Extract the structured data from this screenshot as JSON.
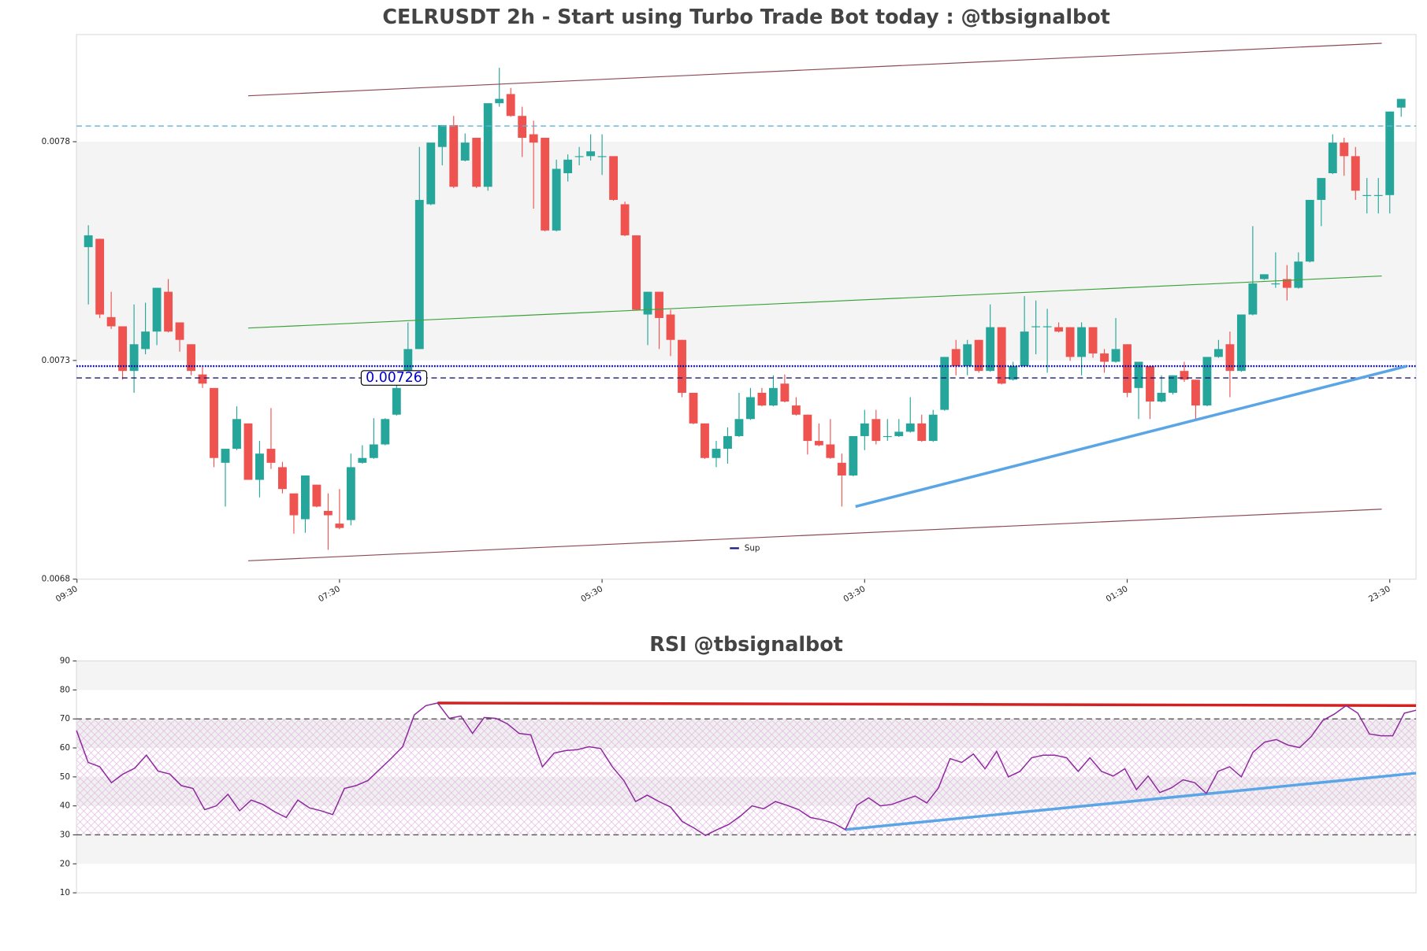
{
  "chart_data": [
    {
      "type": "candlestick",
      "title": "CELRUSDT 2h - Start using Turbo Trade Bot today : @tbsignalbot",
      "up_color": "#26a69a",
      "down_color": "#ef5350",
      "xlim": [
        -1.04,
        116.3
      ],
      "xticks": [
        {
          "value": -1,
          "label": "09:30"
        },
        {
          "value": 22,
          "label": "07:30"
        },
        {
          "value": 45,
          "label": "05:30"
        },
        {
          "value": 68,
          "label": "03:30"
        },
        {
          "value": 91,
          "label": "01:30"
        },
        {
          "value": 114,
          "label": "23:30"
        }
      ],
      "ylim": [
        0.0068,
        0.008045
      ],
      "yticks": [
        0.0068,
        0.0073,
        0.0078
      ],
      "open": [
        0.007559,
        0.007578,
        0.007399,
        0.007378,
        0.007276,
        0.007326,
        0.007366,
        0.007457,
        0.007387,
        0.007337,
        0.007268,
        0.007237,
        0.007066,
        0.007098,
        0.007156,
        0.007027,
        0.007098,
        0.007056,
        0.006996,
        0.006937,
        0.007016,
        0.006956,
        0.006927,
        0.006935,
        0.007066,
        0.007077,
        0.007108,
        0.007176,
        0.007247,
        0.007326,
        0.007657,
        0.007788,
        0.007838,
        0.007757,
        0.007809,
        0.007697,
        0.007888,
        0.007909,
        0.007859,
        0.007817,
        0.007809,
        0.007597,
        0.007728,
        0.007767,
        0.007767,
        0.007767,
        0.007767,
        0.007657,
        0.007586,
        0.007405,
        0.007457,
        0.007405,
        0.007347,
        0.007226,
        0.007156,
        0.007077,
        0.007098,
        0.007127,
        0.007166,
        0.007226,
        0.007197,
        0.007247,
        0.007197,
        0.007176,
        0.007116,
        0.007108,
        0.007066,
        0.007037,
        0.007127,
        0.007166,
        0.007127,
        0.007127,
        0.007137,
        0.007156,
        0.007116,
        0.007187,
        0.007326,
        0.007287,
        0.007347,
        0.007276,
        0.007376,
        0.007256,
        0.007287,
        0.007378,
        0.007378,
        0.007376,
        0.007376,
        0.007308,
        0.007376,
        0.007316,
        0.007297,
        0.007337,
        0.007237,
        0.007287,
        0.007206,
        0.007226,
        0.007276,
        0.007256,
        0.007197,
        0.007308,
        0.007337,
        0.007276,
        0.007405,
        0.007486,
        0.007476,
        0.007486,
        0.007466,
        0.007526,
        0.007667,
        0.007728,
        0.007798,
        0.007767,
        0.007678,
        0.007678,
        0.007678,
        0.007878
      ],
      "high": [
        0.007609,
        0.007578,
        0.007457,
        0.007378,
        0.007428,
        0.007432,
        0.007466,
        0.007486,
        0.007387,
        0.007337,
        0.007285,
        0.007237,
        0.007098,
        0.007195,
        0.007156,
        0.007116,
        0.007191,
        0.007068,
        0.006996,
        0.007037,
        0.007016,
        0.006996,
        0.007006,
        0.007087,
        0.007106,
        0.007168,
        0.007168,
        0.007262,
        0.007387,
        0.007788,
        0.007798,
        0.007838,
        0.007859,
        0.007819,
        0.007809,
        0.007888,
        0.007969,
        0.007923,
        0.00788,
        0.007848,
        0.007809,
        0.007759,
        0.007771,
        0.007788,
        0.007817,
        0.007817,
        0.007767,
        0.007663,
        0.007586,
        0.007457,
        0.007457,
        0.007416,
        0.007347,
        0.007226,
        0.007156,
        0.007116,
        0.007147,
        0.007226,
        0.007237,
        0.007237,
        0.007266,
        0.007268,
        0.007216,
        0.007176,
        0.007156,
        0.007166,
        0.007087,
        0.007127,
        0.007187,
        0.007187,
        0.007166,
        0.007166,
        0.007216,
        0.007176,
        0.007187,
        0.007308,
        0.007347,
        0.007347,
        0.007347,
        0.007428,
        0.007376,
        0.007297,
        0.007447,
        0.007437,
        0.007418,
        0.007387,
        0.007376,
        0.007387,
        0.007376,
        0.007326,
        0.007397,
        0.007337,
        0.007297,
        0.007287,
        0.007266,
        0.007266,
        0.007297,
        0.007256,
        0.007308,
        0.007347,
        0.007366,
        0.007405,
        0.007607,
        0.007497,
        0.007547,
        0.007518,
        0.007547,
        0.007667,
        0.007717,
        0.007817,
        0.007809,
        0.007788,
        0.007717,
        0.007717,
        0.007869,
        0.007898
      ],
      "low": [
        0.007428,
        0.007397,
        0.007372,
        0.007256,
        0.007226,
        0.007314,
        0.007335,
        0.007364,
        0.00732,
        0.007266,
        0.007237,
        0.007056,
        0.006966,
        0.007095,
        0.007027,
        0.006987,
        0.007052,
        0.006996,
        0.006904,
        0.006906,
        0.006964,
        0.006867,
        0.006914,
        0.006923,
        0.007064,
        0.007075,
        0.007106,
        0.007174,
        0.007245,
        0.007326,
        0.007655,
        0.007746,
        0.007694,
        0.007755,
        0.007694,
        0.007688,
        0.00788,
        0.007857,
        0.007765,
        0.007647,
        0.007595,
        0.007595,
        0.007709,
        0.007746,
        0.007757,
        0.007724,
        0.007665,
        0.007584,
        0.007414,
        0.007335,
        0.007326,
        0.00731,
        0.007216,
        0.007154,
        0.007075,
        0.007056,
        0.007064,
        0.007125,
        0.007164,
        0.007195,
        0.007195,
        0.007204,
        0.007174,
        0.007085,
        0.007104,
        0.007075,
        0.006966,
        0.007035,
        0.007095,
        0.007108,
        0.007116,
        0.007125,
        0.007135,
        0.007114,
        0.007114,
        0.007185,
        0.007266,
        0.007266,
        0.007272,
        0.007274,
        0.007245,
        0.007254,
        0.007285,
        0.007314,
        0.007272,
        0.007364,
        0.007299,
        0.007266,
        0.007306,
        0.007272,
        0.007295,
        0.007216,
        0.007166,
        0.007166,
        0.007204,
        0.007222,
        0.007251,
        0.007166,
        0.007195,
        0.007306,
        0.007216,
        0.007274,
        0.007403,
        0.007484,
        0.007466,
        0.007437,
        0.007464,
        0.007524,
        0.007607,
        0.007726,
        0.007722,
        0.007667,
        0.007636,
        0.007636,
        0.007636,
        0.007857
      ],
      "close": [
        0.007586,
        0.007405,
        0.007378,
        0.007276,
        0.007337,
        0.007366,
        0.007466,
        0.007366,
        0.007347,
        0.007276,
        0.007247,
        0.007077,
        0.007098,
        0.007166,
        0.007027,
        0.007087,
        0.007066,
        0.007006,
        0.006946,
        0.007037,
        0.006966,
        0.006946,
        0.006917,
        0.007056,
        0.007077,
        0.007108,
        0.007166,
        0.007237,
        0.007326,
        0.007667,
        0.007798,
        0.007838,
        0.007697,
        0.007798,
        0.007697,
        0.007888,
        0.007898,
        0.007859,
        0.007809,
        0.007798,
        0.007597,
        0.007738,
        0.007759,
        0.007767,
        0.007778,
        0.007767,
        0.007667,
        0.007586,
        0.007416,
        0.007457,
        0.007397,
        0.007347,
        0.007226,
        0.007156,
        0.007077,
        0.007098,
        0.007127,
        0.007166,
        0.007216,
        0.007197,
        0.007237,
        0.007206,
        0.007176,
        0.007116,
        0.007106,
        0.007077,
        0.007037,
        0.007127,
        0.007156,
        0.007116,
        0.007127,
        0.007137,
        0.007156,
        0.007116,
        0.007176,
        0.007308,
        0.007287,
        0.007337,
        0.007276,
        0.007376,
        0.007247,
        0.007287,
        0.007366,
        0.007378,
        0.007378,
        0.007366,
        0.007308,
        0.007376,
        0.007316,
        0.007297,
        0.007326,
        0.007226,
        0.007297,
        0.007206,
        0.007226,
        0.007266,
        0.007256,
        0.007197,
        0.007308,
        0.007326,
        0.007276,
        0.007405,
        0.007476,
        0.007497,
        0.007476,
        0.007466,
        0.007526,
        0.007667,
        0.007717,
        0.007798,
        0.007767,
        0.007688,
        0.007678,
        0.007678,
        0.007869,
        0.007898
      ],
      "zones": [
        {
          "from": 0.0073,
          "to": 0.0078,
          "color": "#f4f4f4"
        }
      ],
      "hlines": [
        {
          "value": 0.007836,
          "color": "#5fb4d8",
          "style": "dashed"
        },
        {
          "value": 0.007287,
          "color": "#0000aa",
          "style": "dotted"
        },
        {
          "name": "Sup",
          "value": 0.00726,
          "label": "0.00726",
          "color": "#1a1a7a",
          "style": "dashed"
        }
      ],
      "lines": [
        {
          "x": [
            14,
            113.3
          ],
          "values": [
            0.007905,
            0.008025
          ],
          "color": "#8b4a55",
          "width": 1
        },
        {
          "x": [
            14,
            113.3
          ],
          "values": [
            0.006842,
            0.00696
          ],
          "color": "#8b4a55",
          "width": 1
        },
        {
          "x": [
            14,
            113.3
          ],
          "values": [
            0.007374,
            0.007493
          ],
          "color": "#3aa33a",
          "width": 1
        },
        {
          "x": [
            67.2,
            115.5
          ],
          "values": [
            0.006966,
            0.007287
          ],
          "color": "#5aa5e6",
          "width": 3
        }
      ],
      "legend": "lower center"
    },
    {
      "type": "line",
      "title": "RSI @tbsignalbot",
      "color": "#8e2a9e",
      "xlim": [
        0,
        115
      ],
      "ylim": [
        10,
        90
      ],
      "yticks": [
        10,
        20,
        30,
        40,
        50,
        60,
        70,
        80,
        90
      ],
      "values": [
        66,
        55,
        53.5,
        48,
        51,
        53,
        57.5,
        52,
        51,
        47,
        46,
        38.7,
        40,
        44,
        38.3,
        42,
        40.5,
        38,
        36,
        42,
        39.3,
        38.3,
        37,
        46,
        47,
        48.7,
        52.5,
        56.3,
        60.4,
        71.4,
        74.6,
        75.5,
        70.2,
        71,
        65,
        70.5,
        70.2,
        68.3,
        65,
        64.5,
        53.5,
        58.2,
        59.1,
        59.4,
        60.4,
        59.8,
        53.5,
        48.7,
        41.5,
        43.7,
        41.5,
        39.6,
        34.6,
        32.4,
        29.8,
        31.8,
        33.6,
        36.5,
        40,
        39,
        41.5,
        40.2,
        38.7,
        36,
        35.2,
        34,
        31.8,
        40.2,
        42.8,
        40,
        40.5,
        42,
        43.4,
        41,
        46.2,
        56.3,
        55,
        57.9,
        52.8,
        58.8,
        50,
        51.9,
        56.6,
        57.5,
        57.5,
        56.6,
        51.9,
        56.6,
        51.9,
        50.3,
        52.8,
        45.6,
        50.3,
        44.6,
        46.2,
        49,
        48,
        44.3,
        51.9,
        53.5,
        50,
        58.5,
        62,
        62.9,
        61,
        60.1,
        63.9,
        69.5,
        71.7,
        74.6,
        72,
        64.8,
        64.2,
        64.2,
        72,
        73
      ],
      "zones": [
        {
          "from": 80,
          "to": 90,
          "color": "#f4f4f4"
        },
        {
          "from": 60,
          "to": 70,
          "color": "#f0f0f0"
        },
        {
          "from": 40,
          "to": 50,
          "color": "#f0f0f0"
        },
        {
          "from": 20,
          "to": 30,
          "color": "#f4f4f4"
        },
        {
          "from": 30,
          "to": 70,
          "color": "#e6b8e6",
          "hatch": true
        }
      ],
      "hlines": [
        {
          "value": 70,
          "color": "#555555",
          "style": "dashed"
        },
        {
          "value": 30,
          "color": "#555555",
          "style": "dashed"
        }
      ],
      "lines": [
        {
          "x": [
            31,
            115
          ],
          "values": [
            75.5,
            74.6
          ],
          "color": "#d42020",
          "width": 3
        },
        {
          "x": [
            66,
            115
          ],
          "values": [
            31.8,
            51.3
          ],
          "color": "#5aa5e6",
          "width": 3
        }
      ]
    }
  ]
}
